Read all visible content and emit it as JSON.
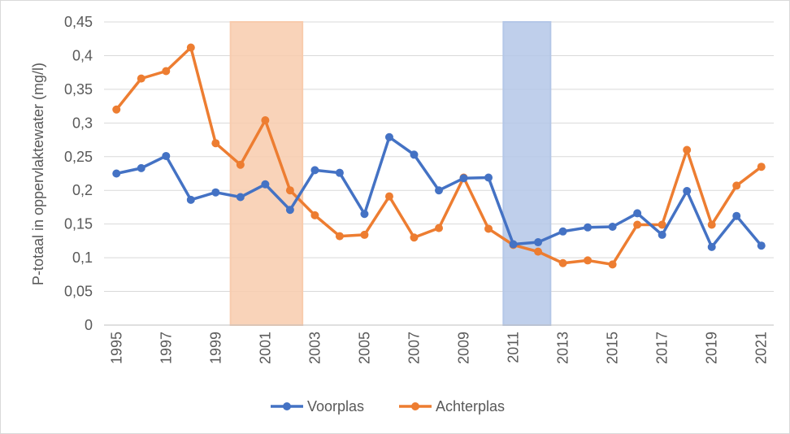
{
  "chart_data": {
    "type": "line",
    "ylabel": "P-totaal in oppervlaktewater (mg/l)",
    "ylim": [
      0,
      0.45
    ],
    "yticks": [
      "0",
      "0,05",
      "0,1",
      "0,15",
      "0,2",
      "0,25",
      "0,3",
      "0,35",
      "0,4",
      "0,45"
    ],
    "x": [
      1995,
      1996,
      1997,
      1998,
      1999,
      2000,
      2001,
      2002,
      2003,
      2004,
      2005,
      2006,
      2007,
      2008,
      2009,
      2010,
      2011,
      2012,
      2013,
      2014,
      2015,
      2016,
      2017,
      2018,
      2019,
      2020,
      2021
    ],
    "xtick_labels": [
      "1995",
      "1997",
      "1999",
      "2001",
      "2003",
      "2005",
      "2007",
      "2009",
      "2011",
      "2013",
      "2015",
      "2017",
      "2019",
      "2021"
    ],
    "grid": "horizontal",
    "legend_position": "bottom",
    "series": [
      {
        "name": "Voorplas",
        "color": "#4472c4",
        "values": [
          0.225,
          0.233,
          0.251,
          0.186,
          0.197,
          0.19,
          0.209,
          0.171,
          0.23,
          0.226,
          0.165,
          0.279,
          0.253,
          0.2,
          0.218,
          0.219,
          0.12,
          0.123,
          0.139,
          0.145,
          0.146,
          0.166,
          0.134,
          0.199,
          0.116,
          0.162,
          0.118
        ]
      },
      {
        "name": "Achterplas",
        "color": "#ed7d31",
        "values": [
          0.32,
          0.366,
          0.377,
          0.412,
          0.27,
          0.238,
          0.304,
          0.2,
          0.163,
          0.132,
          0.134,
          0.191,
          0.13,
          0.144,
          0.219,
          0.143,
          0.119,
          0.109,
          0.092,
          0.096,
          0.09,
          0.149,
          0.149,
          0.26,
          0.149,
          0.207,
          0.235
        ]
      }
    ],
    "shaded_regions": [
      {
        "from": 1999.6,
        "to": 2002.5,
        "color": "#f8cbad"
      },
      {
        "from": 2010.6,
        "to": 2012.5,
        "color": "#b4c7e7"
      }
    ]
  }
}
